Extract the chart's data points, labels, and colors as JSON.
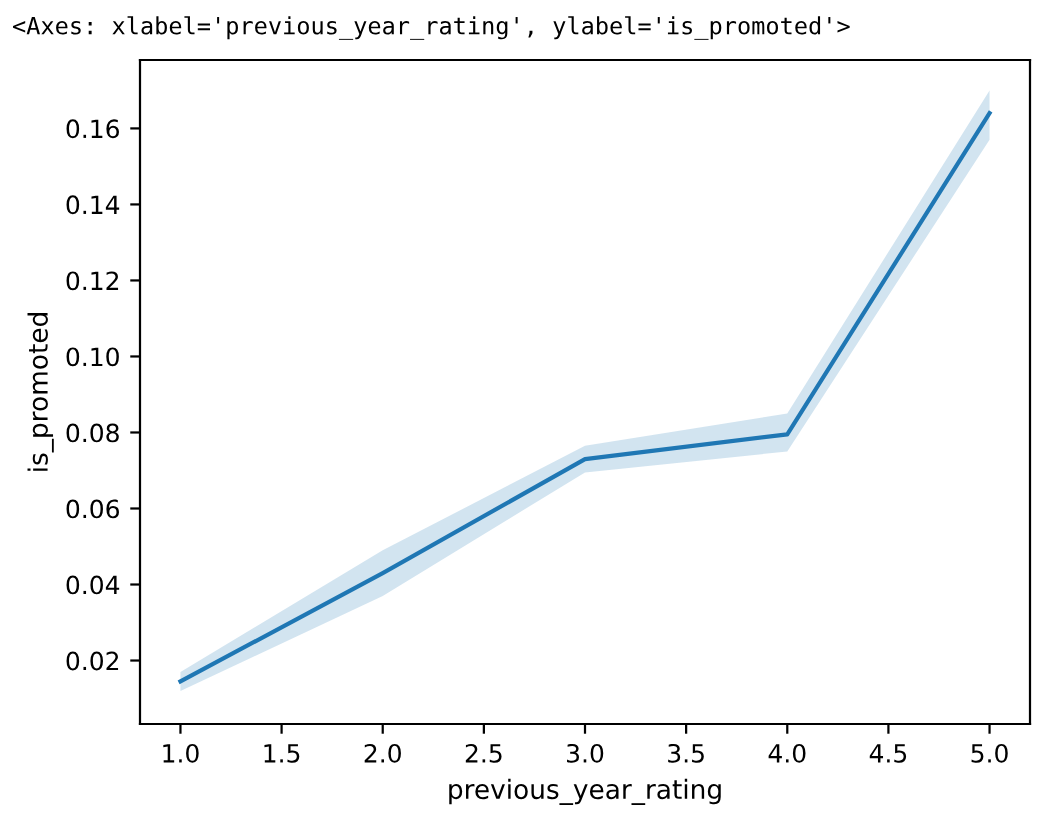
{
  "chart_data": {
    "type": "line",
    "annotations": [
      "<Axes: xlabel='previous_year_rating', ylabel='is_promoted'>"
    ],
    "xlabel": "previous_year_rating",
    "ylabel": "is_promoted",
    "x": [
      1,
      2,
      3,
      4,
      5
    ],
    "series": [
      {
        "color": "#1f77b4",
        "values": [
          0.0145,
          0.043,
          0.073,
          0.0795,
          0.164
        ],
        "lower": [
          0.012,
          0.037,
          0.0695,
          0.075,
          0.157
        ],
        "upper": [
          0.017,
          0.049,
          0.0765,
          0.085,
          0.17
        ]
      }
    ],
    "xlim": [
      0.8,
      5.2
    ],
    "ylim": [
      0.0033,
      0.178
    ],
    "xticks": [
      {
        "value": 1,
        "label": "1.0"
      },
      {
        "value": 1.5,
        "label": "1.5"
      },
      {
        "value": 2,
        "label": "2.0"
      },
      {
        "value": 2.5,
        "label": "2.5"
      },
      {
        "value": 3,
        "label": "3.0"
      },
      {
        "value": 3.5,
        "label": "3.5"
      },
      {
        "value": 4,
        "label": "4.0"
      },
      {
        "value": 4.5,
        "label": "4.5"
      },
      {
        "value": 5,
        "label": "5.0"
      }
    ],
    "yticks": [
      {
        "value": 0.02,
        "label": "0.02"
      },
      {
        "value": 0.04,
        "label": "0.04"
      },
      {
        "value": 0.06,
        "label": "0.06"
      },
      {
        "value": 0.08,
        "label": "0.08"
      },
      {
        "value": 0.1,
        "label": "0.10"
      },
      {
        "value": 0.12,
        "label": "0.12"
      },
      {
        "value": 0.14,
        "label": "0.14"
      },
      {
        "value": 0.16,
        "label": "0.16"
      }
    ],
    "grid": false,
    "legend": false,
    "marker": "none",
    "line_style": "solid"
  }
}
